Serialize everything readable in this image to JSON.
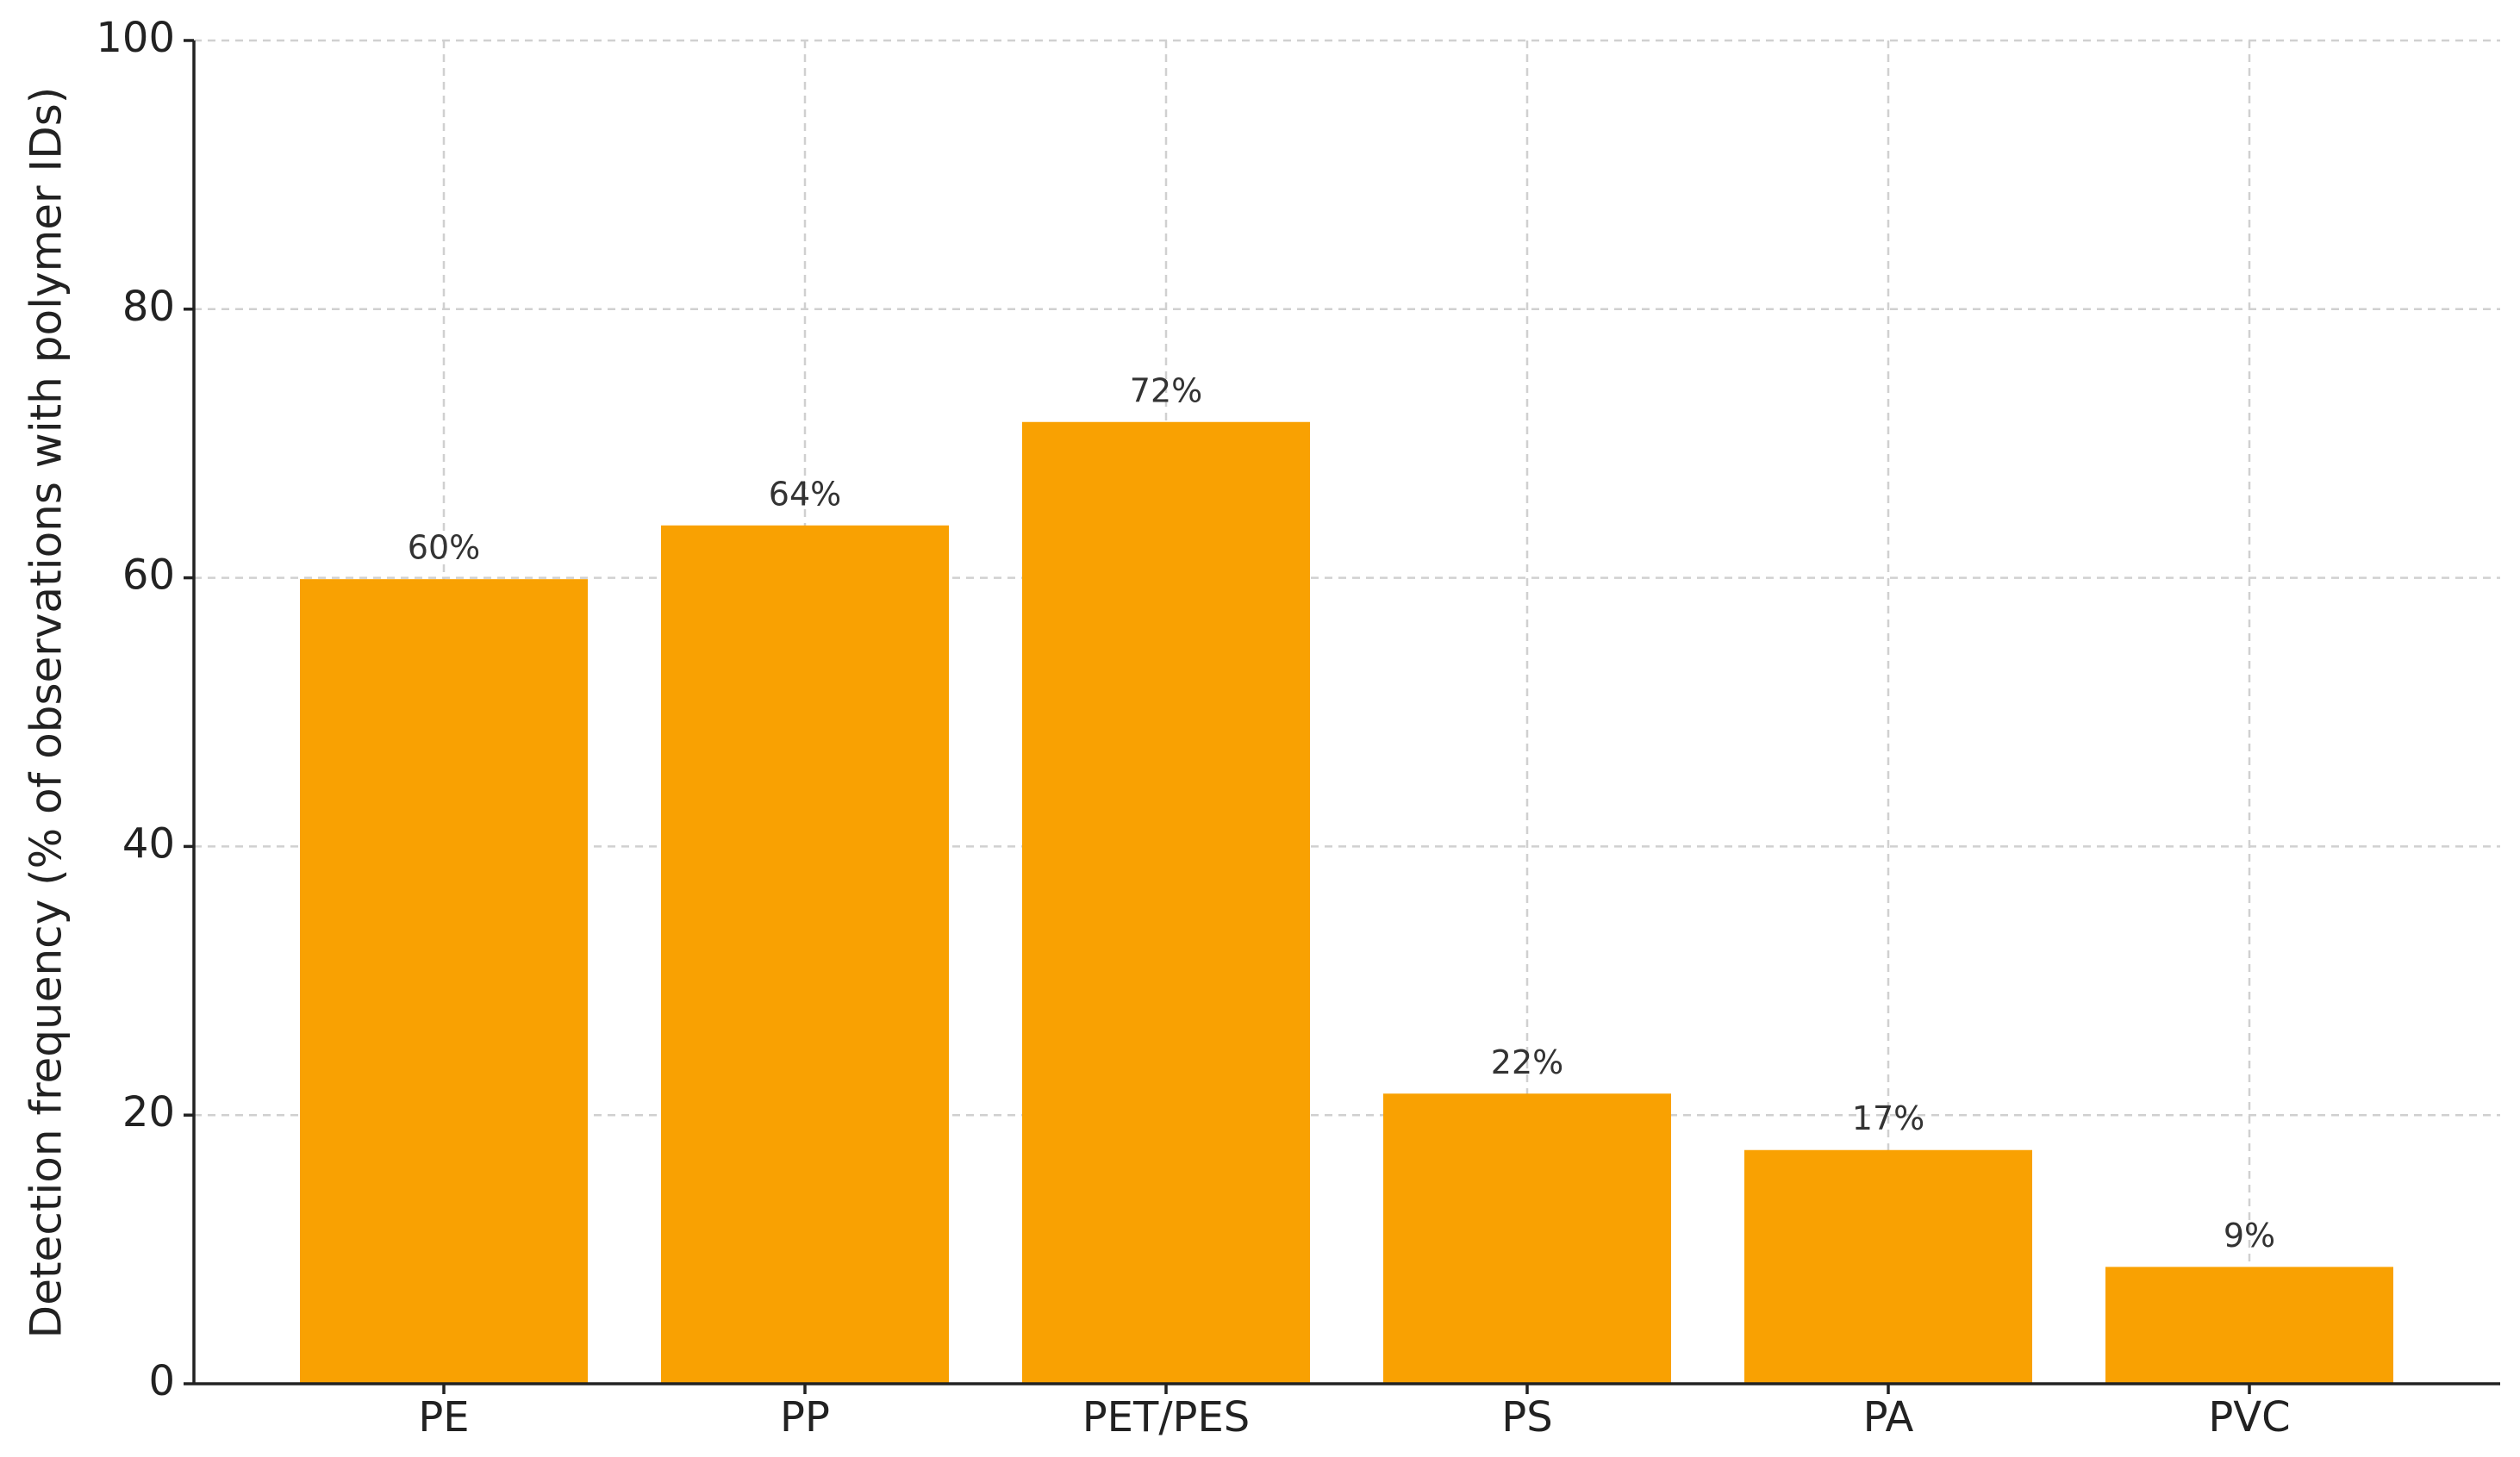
{
  "chart_data": {
    "type": "bar",
    "y_label": "Detection frequency (% of observations with polymer IDs)",
    "categories": [
      "PE",
      "PP",
      "PET/PES",
      "PS",
      "PA",
      "PVC"
    ],
    "values": [
      59.9,
      63.9,
      71.6,
      21.6,
      17.4,
      8.7
    ],
    "value_labels": [
      "60%",
      "64%",
      "72%",
      "22%",
      "17%",
      "9%"
    ],
    "color": "#f9a102",
    "ylim": [
      0,
      100
    ],
    "yticks": [
      0,
      20,
      40,
      60,
      80,
      100
    ],
    "grid": true
  }
}
